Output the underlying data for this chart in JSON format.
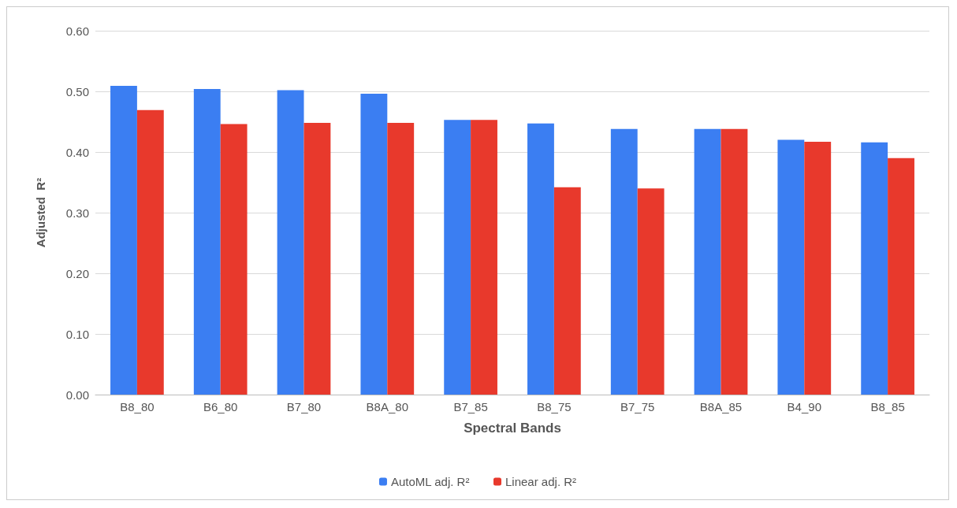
{
  "chart_data": {
    "type": "bar",
    "xlabel": "Spectral Bands",
    "ylabel": "Adjusted  R²",
    "categories": [
      "B8_80",
      "B6_80",
      "B7_80",
      "B8A_80",
      "B7_85",
      "B8_75",
      "B7_75",
      "B8A_85",
      "B4_90",
      "B8_85"
    ],
    "series": [
      {
        "name": "AutoML adj. R²",
        "color": "#3b7ef2",
        "values": [
          0.509,
          0.504,
          0.502,
          0.496,
          0.453,
          0.447,
          0.438,
          0.438,
          0.42,
          0.416
        ]
      },
      {
        "name": "Linear adj. R²",
        "color": "#e8392c",
        "values": [
          0.469,
          0.446,
          0.448,
          0.448,
          0.453,
          0.342,
          0.34,
          0.438,
          0.417,
          0.39
        ]
      }
    ],
    "ylim": [
      0,
      0.6
    ],
    "yticks": [
      {
        "value": 0,
        "label": "0.00"
      },
      {
        "value": 0.1,
        "label": "0.10"
      },
      {
        "value": 0.2,
        "label": "0.20"
      },
      {
        "value": 0.3,
        "label": "0.30"
      },
      {
        "value": 0.4,
        "label": "0.40"
      },
      {
        "value": 0.5,
        "label": "0.50"
      },
      {
        "value": 0.6,
        "label": "0.60"
      }
    ],
    "grid": true,
    "legend": "bottom"
  }
}
